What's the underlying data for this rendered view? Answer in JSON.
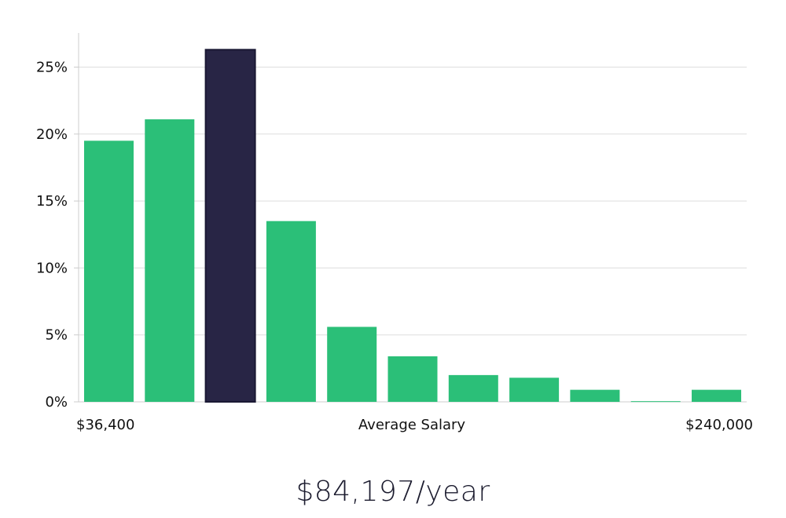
{
  "chart_data": {
    "type": "bar",
    "title": "",
    "xlabel": "Average Salary",
    "ylabel": "",
    "x_range_labels": [
      "$36,400",
      "$240,000"
    ],
    "y_ticks": [
      "0%",
      "5%",
      "10%",
      "15%",
      "20%",
      "25%"
    ],
    "ylim": [
      0,
      27.5
    ],
    "values": [
      19.5,
      21.1,
      26.3,
      13.5,
      5.6,
      3.4,
      2.0,
      1.8,
      0.9,
      0.05,
      0.9
    ],
    "highlight_index": 2,
    "colors": {
      "bar": "#2bbf78",
      "highlight": "#282545",
      "grid": "#dddddd",
      "axis": "#cccccc"
    }
  },
  "headline": "$84,197/year"
}
